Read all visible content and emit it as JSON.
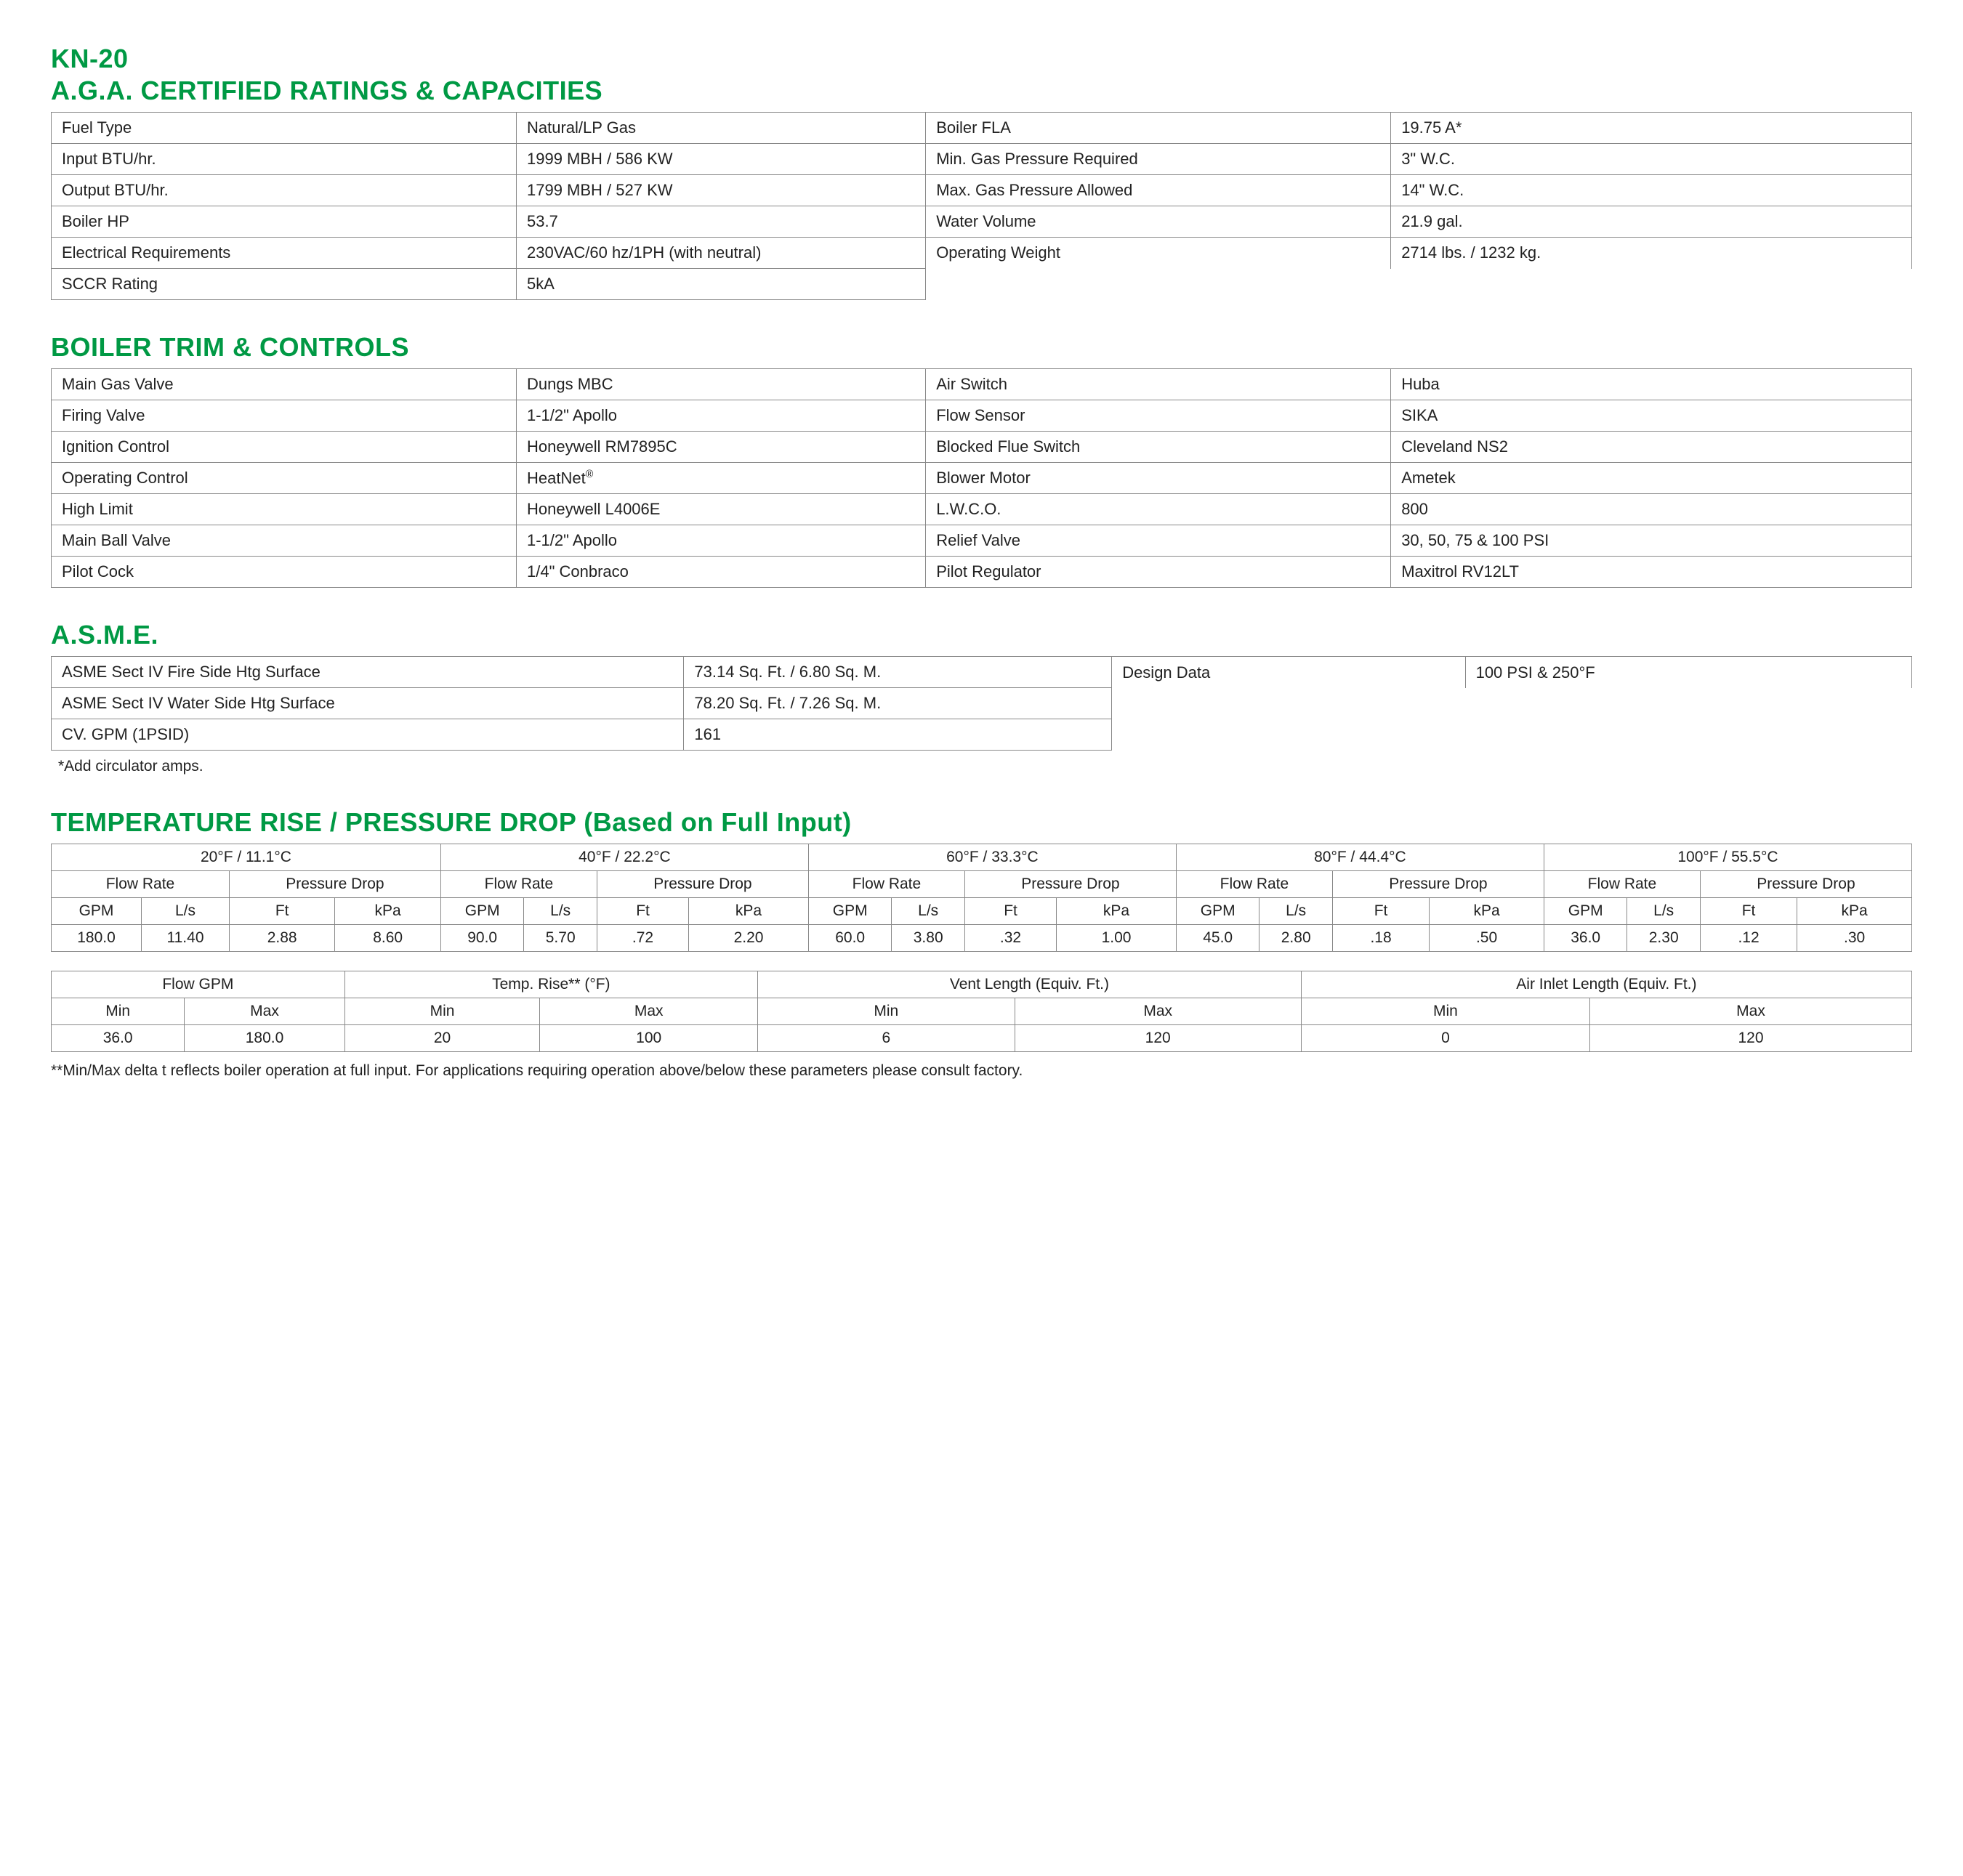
{
  "model": "KN-20",
  "colors": {
    "brand": "#009944",
    "border": "#888888",
    "text": "#222222",
    "bg": "#ffffff"
  },
  "ratings": {
    "title": "A.G.A. CERTIFIED RATINGS & CAPACITIES",
    "rows": [
      [
        "Fuel Type",
        "Natural/LP Gas",
        "Boiler FLA",
        "19.75 A*"
      ],
      [
        "Input BTU/hr.",
        "1999 MBH / 586 KW",
        "Min. Gas Pressure Required",
        "3\" W.C."
      ],
      [
        "Output BTU/hr.",
        "1799 MBH / 527 KW",
        "Max. Gas Pressure Allowed",
        "14\" W.C."
      ],
      [
        "Boiler HP",
        "53.7",
        "Water Volume",
        "21.9 gal."
      ],
      [
        "Electrical Requirements",
        "230VAC/60 hz/1PH (with neutral)",
        "Operating Weight",
        "2714 lbs. / 1232 kg."
      ],
      [
        "SCCR Rating",
        "5kA",
        "",
        ""
      ]
    ]
  },
  "trim": {
    "title": "BOILER TRIM & CONTROLS",
    "rows": [
      [
        "Main Gas Valve",
        "Dungs MBC",
        "Air Switch",
        "Huba"
      ],
      [
        "Firing Valve",
        "1-1/2\" Apollo",
        "Flow Sensor",
        "SIKA"
      ],
      [
        "Ignition Control",
        "Honeywell RM7895C",
        "Blocked Flue Switch",
        "Cleveland NS2"
      ],
      [
        "Operating Control",
        "HeatNet®",
        "Blower Motor",
        "Ametek"
      ],
      [
        "High Limit",
        "Honeywell L4006E",
        "L.W.C.O.",
        "800"
      ],
      [
        "Main Ball Valve",
        "1-1/2\" Apollo",
        "Relief Valve",
        "30, 50, 75 & 100 PSI"
      ],
      [
        "Pilot Cock",
        "1/4\" Conbraco",
        "Pilot Regulator",
        "Maxitrol RV12LT"
      ]
    ]
  },
  "asme": {
    "title": "A.S.M.E.",
    "rows": [
      [
        "ASME Sect IV Fire Side Htg Surface",
        "73.14 Sq. Ft. / 6.80 Sq. M.",
        "Design Data",
        "100 PSI & 250°F"
      ],
      [
        "ASME Sect IV Water Side Htg Surface",
        "78.20 Sq. Ft. / 7.26 Sq. M.",
        "",
        ""
      ],
      [
        "CV. GPM (1PSID)",
        "161",
        "",
        ""
      ]
    ],
    "note": "*Add circulator amps."
  },
  "temprise": {
    "title": "TEMPERATURE RISE / PRESSURE DROP (Based on Full Input)",
    "groups": [
      "20°F / 11.1°C",
      "40°F / 22.2°C",
      "60°F / 33.3°C",
      "80°F / 44.4°C",
      "100°F / 55.5°C"
    ],
    "sub1": [
      "Flow Rate",
      "Pressure Drop"
    ],
    "units": [
      "GPM",
      "L/s",
      "Ft",
      "kPa"
    ],
    "data": [
      [
        "180.0",
        "11.40",
        "2.88",
        "8.60",
        "90.0",
        "5.70",
        ".72",
        "2.20",
        "60.0",
        "3.80",
        ".32",
        "1.00",
        "45.0",
        "2.80",
        ".18",
        ".50",
        "36.0",
        "2.30",
        ".12",
        ".30"
      ]
    ]
  },
  "limits": {
    "headers": [
      "Flow GPM",
      "Temp. Rise** (°F)",
      "Vent Length (Equiv. Ft.)",
      "Air Inlet Length (Equiv. Ft.)"
    ],
    "sub": [
      "Min",
      "Max"
    ],
    "row": [
      "36.0",
      "180.0",
      "20",
      "100",
      "6",
      "120",
      "0",
      "120"
    ],
    "note": "**Min/Max delta t reflects boiler operation at full input. For applications requiring operation above/below these parameters please consult factory."
  }
}
